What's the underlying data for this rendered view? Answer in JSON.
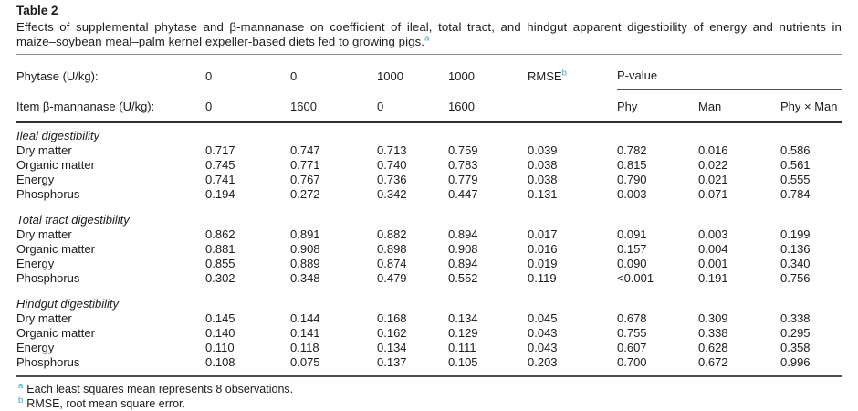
{
  "title": "Table 2",
  "caption": {
    "line1": "Effects of supplemental phytase and β-mannanase on coefficient of ileal, total tract, and hindgut apparent digestibility of energy and nutrients in",
    "line2": "maize–soybean meal–palm kernel expeller-based diets fed to growing pigs.",
    "marker": "a"
  },
  "colors": {
    "text": "#1c1c1c",
    "superscript_blue": "#3ba3c9",
    "rule_light": "#8f8f8f",
    "rule_dark": "#2f2f2f"
  },
  "table": {
    "header": {
      "row1_label": "Phytase (U/kg):",
      "row1_values": [
        "0",
        "0",
        "1000",
        "1000"
      ],
      "rmse_label": "RMSE",
      "rmse_marker": "b",
      "pvalue_label": "P-value",
      "row2_label": "Item β-mannanase (U/kg):",
      "row2_values": [
        "0",
        "1600",
        "0",
        "1600"
      ],
      "pvalue_columns": [
        "Phy",
        "Man",
        "Phy × Man"
      ]
    },
    "sections": [
      {
        "name": "Ileal digestibility",
        "rows": [
          {
            "label": "Dry matter",
            "values": [
              "0.717",
              "0.747",
              "0.713",
              "0.759",
              "0.039",
              "0.782",
              "0.016",
              "0.586"
            ]
          },
          {
            "label": "Organic matter",
            "values": [
              "0.745",
              "0.771",
              "0.740",
              "0.783",
              "0.038",
              "0.815",
              "0.022",
              "0.561"
            ]
          },
          {
            "label": "Energy",
            "values": [
              "0.741",
              "0.767",
              "0.736",
              "0.779",
              "0.038",
              "0.790",
              "0.021",
              "0.555"
            ]
          },
          {
            "label": "Phosphorus",
            "values": [
              "0.194",
              "0.272",
              "0.342",
              "0.447",
              "0.131",
              "0.003",
              "0.071",
              "0.784"
            ]
          }
        ]
      },
      {
        "name": "Total tract digestibility",
        "rows": [
          {
            "label": "Dry matter",
            "values": [
              "0.862",
              "0.891",
              "0.882",
              "0.894",
              "0.017",
              "0.091",
              "0.003",
              "0.199"
            ]
          },
          {
            "label": "Organic matter",
            "values": [
              "0.881",
              "0.908",
              "0.898",
              "0.908",
              "0.016",
              "0.157",
              "0.004",
              "0.136"
            ]
          },
          {
            "label": "Energy",
            "values": [
              "0.855",
              "0.889",
              "0.874",
              "0.894",
              "0.019",
              "0.090",
              "0.001",
              "0.340"
            ]
          },
          {
            "label": "Phosphorus",
            "values": [
              "0.302",
              "0.348",
              "0.479",
              "0.552",
              "0.119",
              "<0.001",
              "0.191",
              "0.756"
            ]
          }
        ]
      },
      {
        "name": "Hindgut digestibility",
        "rows": [
          {
            "label": "Dry matter",
            "values": [
              "0.145",
              "0.144",
              "0.168",
              "0.134",
              "0.045",
              "0.678",
              "0.309",
              "0.338"
            ]
          },
          {
            "label": "Organic matter",
            "values": [
              "0.140",
              "0.141",
              "0.162",
              "0.129",
              "0.043",
              "0.755",
              "0.338",
              "0.295"
            ]
          },
          {
            "label": "Energy",
            "values": [
              "0.110",
              "0.118",
              "0.134",
              "0.111",
              "0.043",
              "0.607",
              "0.628",
              "0.358"
            ]
          },
          {
            "label": "Phosphorus",
            "values": [
              "0.108",
              "0.075",
              "0.137",
              "0.105",
              "0.203",
              "0.700",
              "0.672",
              "0.996"
            ]
          }
        ]
      }
    ]
  },
  "footnotes": [
    {
      "marker": "a",
      "text": "Each least squares mean represents 8 observations."
    },
    {
      "marker": "b",
      "text": "RMSE, root mean square error."
    }
  ]
}
